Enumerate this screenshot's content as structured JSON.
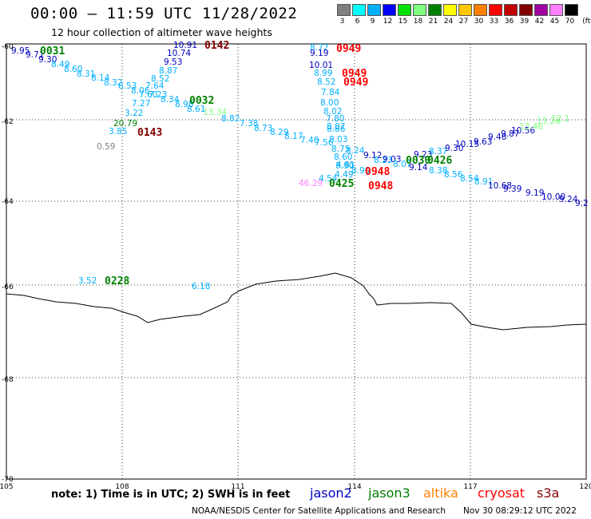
{
  "title": "00:00 — 11:59 UTC 11/28/2022",
  "subtitle": "12 hour collection of altimeter wave heights",
  "legend": {
    "labels": [
      "3",
      "6",
      "9",
      "12",
      "15",
      "18",
      "21",
      "24",
      "27",
      "30",
      "33",
      "36",
      "39",
      "42",
      "45",
      "70",
      "(ft)"
    ],
    "colors": [
      "#808080",
      "#00ffff",
      "#00b0ff",
      "#0000ff",
      "#00e000",
      "#80ff80",
      "#008000",
      "#ffff00",
      "#ffc800",
      "#ff8000",
      "#ff0000",
      "#c00000",
      "#800000",
      "#a000a0",
      "#ff80ff",
      "#000000"
    ]
  },
  "axes": {
    "lon_ticks": [
      "105",
      "108",
      "111",
      "114",
      "117",
      "120"
    ],
    "lat_ticks": [
      "-60",
      "-62",
      "-64",
      "-66",
      "-68",
      "-70"
    ]
  },
  "wave_labels": [
    {
      "t": "9.95",
      "c": "#0000c0"
    },
    {
      "t": "9.71",
      "c": "#0000c0"
    },
    {
      "t": "9.30",
      "c": "#0000c0"
    },
    {
      "t": "8.49",
      "c": "#00b0ff"
    },
    {
      "t": "8.60",
      "c": "#00b0ff"
    },
    {
      "t": "8.31",
      "c": "#00b0ff"
    },
    {
      "t": "8.14",
      "c": "#00b0ff"
    },
    {
      "t": "8.32",
      "c": "#00b0ff"
    },
    {
      "t": "8.53",
      "c": "#00b0ff"
    },
    {
      "t": "8.06",
      "c": "#00b0ff"
    },
    {
      "t": "7.64",
      "c": "#00b0ff"
    },
    {
      "t": "7.60",
      "c": "#00b0ff"
    },
    {
      "t": "7.27",
      "c": "#00b0ff"
    },
    {
      "t": "7.23",
      "c": "#00b0ff"
    },
    {
      "t": "3.22",
      "c": "#00b0ff"
    },
    {
      "t": "20.79",
      "c": "#008000"
    },
    {
      "t": "3.85",
      "c": "#00b0ff"
    },
    {
      "t": "0.59",
      "c": "#808080"
    },
    {
      "t": "10.91",
      "c": "#0000c0"
    },
    {
      "t": "10.74",
      "c": "#0000c0"
    },
    {
      "t": "9.53",
      "c": "#0000c0"
    },
    {
      "t": "8.87",
      "c": "#00b0ff"
    },
    {
      "t": "8.52",
      "c": "#00b0ff"
    },
    {
      "t": "8.34",
      "c": "#00b0ff"
    },
    {
      "t": "8.98",
      "c": "#00b0ff"
    },
    {
      "t": "8.61",
      "c": "#00b0ff"
    },
    {
      "t": "13.34",
      "c": "#80ff80"
    },
    {
      "t": "8.82",
      "c": "#00b0ff"
    },
    {
      "t": "7.38",
      "c": "#00b0ff"
    },
    {
      "t": "8.73",
      "c": "#00b0ff"
    },
    {
      "t": "8.29",
      "c": "#00b0ff"
    },
    {
      "t": "8.17",
      "c": "#00b0ff"
    },
    {
      "t": "7.40",
      "c": "#00b0ff"
    },
    {
      "t": "7.56",
      "c": "#00b0ff"
    },
    {
      "t": "8.72",
      "c": "#00b0ff"
    },
    {
      "t": "9.19",
      "c": "#0000c0"
    },
    {
      "t": "10.01",
      "c": "#0000c0"
    },
    {
      "t": "8.99",
      "c": "#00b0ff"
    },
    {
      "t": "8.52",
      "c": "#00b0ff"
    },
    {
      "t": "7.84",
      "c": "#00b0ff"
    },
    {
      "t": "8.00",
      "c": "#00b0ff"
    },
    {
      "t": "8.02",
      "c": "#00b0ff"
    },
    {
      "t": "7.80",
      "c": "#00b0ff"
    },
    {
      "t": "8.87",
      "c": "#00b0ff"
    },
    {
      "t": "8.86",
      "c": "#00b0ff"
    },
    {
      "t": "8.03",
      "c": "#00b0ff"
    },
    {
      "t": "8.75",
      "c": "#00b0ff"
    },
    {
      "t": "8.24",
      "c": "#00b0ff"
    },
    {
      "t": "8.60",
      "c": "#00b0ff"
    },
    {
      "t": "8.90",
      "c": "#00b0ff"
    },
    {
      "t": "4.81",
      "c": "#00b0ff"
    },
    {
      "t": "8.90",
      "c": "#00b0ff"
    },
    {
      "t": "4.54",
      "c": "#00b0ff"
    },
    {
      "t": "4.49",
      "c": "#00b0ff"
    },
    {
      "t": "46.29",
      "c": "#ff80ff"
    },
    {
      "t": "9.12",
      "c": "#0000c0"
    },
    {
      "t": "8.23",
      "c": "#00b0ff"
    },
    {
      "t": "9.03",
      "c": "#0000c0"
    },
    {
      "t": "8.07",
      "c": "#00b0ff"
    },
    {
      "t": "9.14",
      "c": "#0000c0"
    },
    {
      "t": "8.38",
      "c": "#00b0ff"
    },
    {
      "t": "9.23",
      "c": "#0000c0"
    },
    {
      "t": "8.37",
      "c": "#00b0ff"
    },
    {
      "t": "9.30",
      "c": "#0000c0"
    },
    {
      "t": "10.15",
      "c": "#0000c0"
    },
    {
      "t": "9.63",
      "c": "#0000c0"
    },
    {
      "t": "9.48",
      "c": "#0000c0"
    },
    {
      "t": "9.87",
      "c": "#0000c0"
    },
    {
      "t": "10.56",
      "c": "#0000c0"
    },
    {
      "t": "13.46",
      "c": "#80ff80"
    },
    {
      "t": "13.26",
      "c": "#80ff80"
    },
    {
      "t": "12.1",
      "c": "#80ff80"
    },
    {
      "t": "8.56",
      "c": "#00b0ff"
    },
    {
      "t": "8.54",
      "c": "#00b0ff"
    },
    {
      "t": "8.91",
      "c": "#00b0ff"
    },
    {
      "t": "10.68",
      "c": "#0000c0"
    },
    {
      "t": "9.39",
      "c": "#0000c0"
    },
    {
      "t": "9.19",
      "c": "#0000c0"
    },
    {
      "t": "10.00",
      "c": "#0000c0"
    },
    {
      "t": "9.24",
      "c": "#0000c0"
    },
    {
      "t": "9.2",
      "c": "#0000c0"
    },
    {
      "t": "3.52",
      "c": "#00b0ff"
    },
    {
      "t": "6.18",
      "c": "#00b0ff"
    }
  ],
  "time_labels": [
    {
      "t": "0031",
      "c": "#008000"
    },
    {
      "t": "0142",
      "c": "#800000"
    },
    {
      "t": "0032",
      "c": "#008000"
    },
    {
      "t": "0143",
      "c": "#800000"
    },
    {
      "t": "0949",
      "c": "#ff0000"
    },
    {
      "t": "0949",
      "c": "#ff0000"
    },
    {
      "t": "0949",
      "c": "#ff0000"
    },
    {
      "t": "0030",
      "c": "#008000"
    },
    {
      "t": "0426",
      "c": "#008000"
    },
    {
      "t": "0948",
      "c": "#ff0000"
    },
    {
      "t": "0948",
      "c": "#ff0000"
    },
    {
      "t": "0425",
      "c": "#008000"
    },
    {
      "t": "0228",
      "c": "#008000"
    }
  ],
  "note": "note: 1) Time is in UTC; 2) SWH is in feet",
  "satellites": [
    {
      "name": "jason2",
      "color": "#0000c0"
    },
    {
      "name": "jason3",
      "color": "#008000"
    },
    {
      "name": "altika",
      "color": "#ff8000"
    },
    {
      "name": "cryosat",
      "color": "#ff0000"
    },
    {
      "name": "s3a",
      "color": "#800000"
    }
  ],
  "credit": "NOAA/NESDIS Center for Satellite Applications and Research",
  "timestamp": "Nov 30 08:29:12 UTC 2022"
}
